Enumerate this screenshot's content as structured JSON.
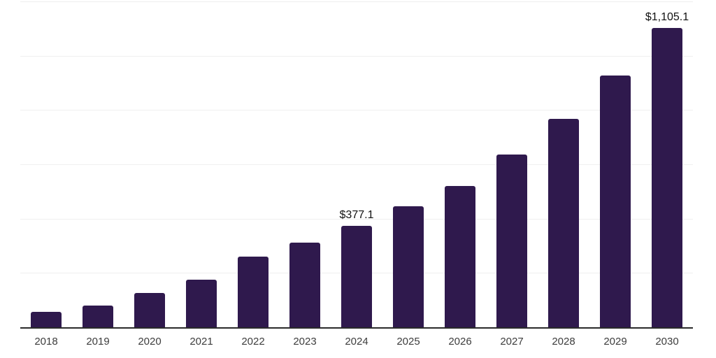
{
  "chart_data": {
    "type": "bar",
    "title": "",
    "xlabel": "",
    "ylabel": "",
    "categories": [
      "2018",
      "2019",
      "2020",
      "2021",
      "2022",
      "2023",
      "2024",
      "2025",
      "2026",
      "2027",
      "2028",
      "2029",
      "2030"
    ],
    "values": [
      60,
      83,
      128,
      177,
      262,
      313,
      377.1,
      448,
      523,
      638,
      770,
      928,
      1105.1
    ],
    "data_labels": {
      "2024": "$377.1",
      "2030": "$1,105.1"
    },
    "ylim": [
      0,
      1200
    ],
    "grid": true,
    "grid_step": 200,
    "legend": false,
    "colors": {
      "bar": "#2f194d",
      "gridline": "#efefef",
      "axis_line": "#2b2b2b",
      "tick_label": "#3d3d3d",
      "data_label": "#111111",
      "background": "#ffffff"
    }
  }
}
